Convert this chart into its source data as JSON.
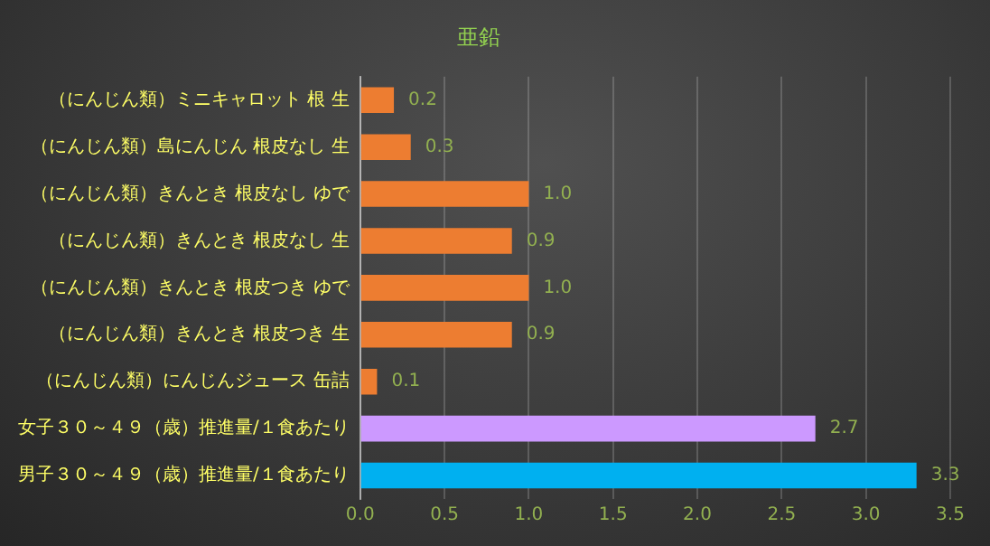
{
  "chart_data": {
    "type": "bar",
    "orientation": "horizontal",
    "title": "亜鉛",
    "categories": [
      "（にんじん類）ミニキャロット 根 生",
      "（にんじん類）島にんじん 根皮なし 生",
      "（にんじん類）きんとき 根皮なし ゆで",
      "（にんじん類）きんとき 根皮なし 生",
      "（にんじん類）きんとき 根皮つき ゆで",
      "（にんじん類）きんとき 根皮つき 生",
      "（にんじん類）にんじんジュース 缶詰",
      "女子３０～４９（歳）推進量/１食あたり",
      "男子３０～４９（歳）推進量/１食あたり"
    ],
    "values": [
      0.2,
      0.3,
      1.0,
      0.9,
      1.0,
      0.9,
      0.1,
      2.7,
      3.3
    ],
    "value_labels": [
      "0.2",
      "0.3",
      "1.0",
      "0.9",
      "1.0",
      "0.9",
      "0.1",
      "2.7",
      "3.3"
    ],
    "colors": [
      "#ed7d31",
      "#ed7d31",
      "#ed7d31",
      "#ed7d31",
      "#ed7d31",
      "#ed7d31",
      "#ed7d31",
      "#cc99ff",
      "#00b0f0"
    ],
    "xlim": [
      0,
      3.5
    ],
    "xticks": [
      "0.0",
      "0.5",
      "1.0",
      "1.5",
      "2.0",
      "2.5",
      "3.0",
      "3.5"
    ],
    "grid": "x",
    "legend": false
  }
}
